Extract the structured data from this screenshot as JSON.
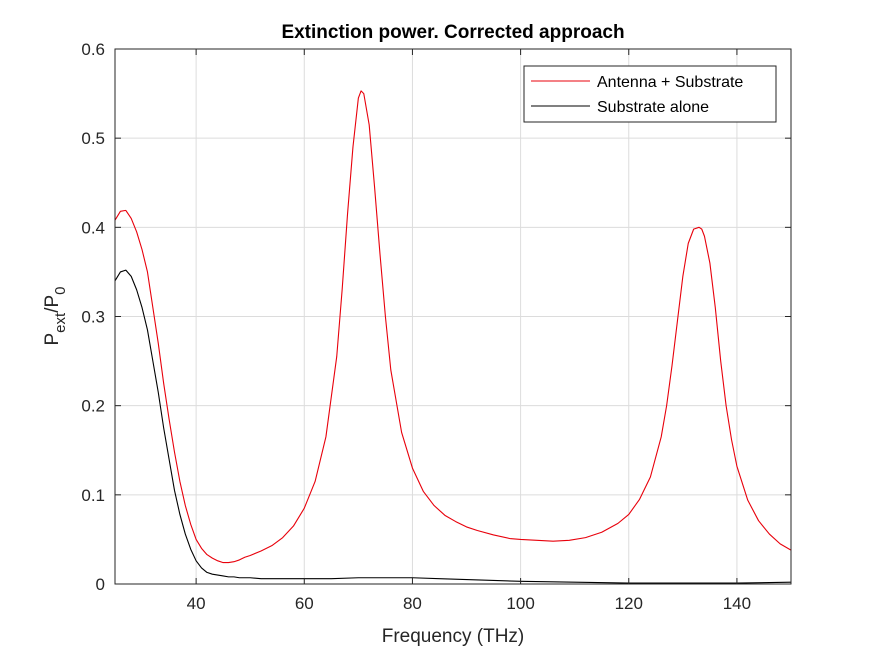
{
  "chart_data": {
    "type": "line",
    "title": "Extinction power. Corrected approach",
    "xlabel": "Frequency (THz)",
    "ylabel_main": "P",
    "ylabel_sub1": "ext",
    "ylabel_mid": "/P",
    "ylabel_sub2": "0",
    "xlim": [
      25,
      150
    ],
    "ylim": [
      0,
      0.6
    ],
    "xticks": [
      40,
      60,
      80,
      100,
      120,
      140
    ],
    "yticks": [
      0,
      0.1,
      0.2,
      0.3,
      0.4,
      0.5,
      0.6
    ],
    "xtick_labels": [
      "40",
      "60",
      "80",
      "100",
      "120",
      "140"
    ],
    "ytick_labels": [
      "0",
      "0.1",
      "0.2",
      "0.3",
      "0.4",
      "0.5",
      "0.6"
    ],
    "grid": true,
    "legend_position": "top-right",
    "series": [
      {
        "name": "Antenna + Substrate",
        "color": "#e8000b",
        "x": [
          25,
          26,
          27,
          28,
          29,
          30,
          31,
          32,
          33,
          34,
          35,
          36,
          37,
          38,
          39,
          40,
          41,
          42,
          43,
          44,
          45,
          46,
          47,
          48,
          49,
          50,
          52,
          54,
          56,
          58,
          60,
          62,
          64,
          66,
          67,
          68,
          69,
          70,
          70.5,
          71,
          72,
          73,
          74,
          75,
          76,
          78,
          80,
          82,
          84,
          86,
          88,
          90,
          92,
          95,
          98,
          100,
          103,
          106,
          109,
          112,
          115,
          118,
          120,
          122,
          124,
          126,
          127,
          128,
          129,
          130,
          131,
          132,
          133,
          133.5,
          134,
          135,
          136,
          137,
          138,
          139,
          140,
          142,
          144,
          146,
          148,
          150
        ],
        "y": [
          0.408,
          0.418,
          0.419,
          0.41,
          0.395,
          0.375,
          0.35,
          0.31,
          0.27,
          0.225,
          0.185,
          0.148,
          0.115,
          0.088,
          0.067,
          0.05,
          0.04,
          0.033,
          0.029,
          0.026,
          0.024,
          0.024,
          0.025,
          0.027,
          0.03,
          0.032,
          0.037,
          0.043,
          0.052,
          0.065,
          0.085,
          0.115,
          0.165,
          0.255,
          0.33,
          0.415,
          0.49,
          0.545,
          0.553,
          0.55,
          0.515,
          0.445,
          0.37,
          0.3,
          0.24,
          0.17,
          0.13,
          0.104,
          0.088,
          0.077,
          0.07,
          0.064,
          0.06,
          0.055,
          0.051,
          0.05,
          0.049,
          0.048,
          0.049,
          0.052,
          0.058,
          0.068,
          0.078,
          0.095,
          0.12,
          0.165,
          0.2,
          0.245,
          0.295,
          0.345,
          0.382,
          0.398,
          0.4,
          0.398,
          0.39,
          0.36,
          0.31,
          0.25,
          0.2,
          0.162,
          0.132,
          0.094,
          0.071,
          0.056,
          0.045,
          0.038
        ]
      },
      {
        "name": "Substrate alone",
        "color": "#000000",
        "x": [
          25,
          26,
          27,
          28,
          29,
          30,
          31,
          32,
          33,
          34,
          35,
          36,
          37,
          38,
          39,
          40,
          41,
          42,
          43,
          44,
          45,
          46,
          47,
          48,
          50,
          52,
          55,
          60,
          65,
          70,
          75,
          80,
          85,
          90,
          95,
          100,
          110,
          120,
          130,
          140,
          150
        ],
        "y": [
          0.34,
          0.35,
          0.352,
          0.345,
          0.33,
          0.31,
          0.285,
          0.25,
          0.215,
          0.175,
          0.14,
          0.105,
          0.078,
          0.056,
          0.039,
          0.026,
          0.018,
          0.013,
          0.011,
          0.01,
          0.009,
          0.008,
          0.008,
          0.007,
          0.007,
          0.006,
          0.006,
          0.006,
          0.006,
          0.007,
          0.007,
          0.007,
          0.006,
          0.005,
          0.004,
          0.003,
          0.002,
          0.001,
          0.001,
          0.001,
          0.002
        ]
      }
    ]
  }
}
